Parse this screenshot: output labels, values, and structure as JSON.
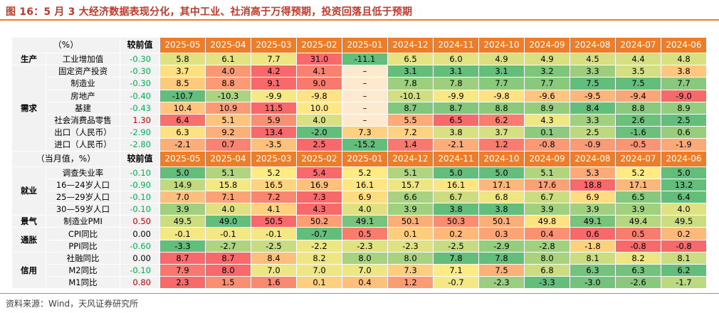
{
  "title": "图 16：5 月 3 大经济数据表现分化，其中工业、社消高于万得预期，投资回落且低于预期",
  "source": "资料来源：Wind，天风证券研究所",
  "colors": {
    "accent": "#ee7d2a",
    "title": "#c0392b",
    "green": "#63be7b",
    "yellow": "#ffeb84",
    "red": "#f8696b",
    "pos": "#c00000",
    "neg": "#00b050"
  },
  "header1": {
    "corner": "（%）",
    "compare": "较前值"
  },
  "header2": {
    "corner": "（当月值，%）",
    "compare": "较前值"
  },
  "months": [
    "2025-05",
    "2025-04",
    "2025-03",
    "2025-02",
    "2025-01",
    "2024-12",
    "2024-11",
    "2024-10",
    "2024-09",
    "2024-08",
    "2024-07",
    "2024-06"
  ],
  "sections": [
    {
      "group": "生产",
      "rows": [
        {
          "label": "工业增加值",
          "cmp": "-0.30",
          "values": [
            "5.8",
            "6.1",
            "7.7",
            "31.0",
            "-11.1",
            "6.5",
            "6.0",
            "4.9",
            "4.9",
            "4.5",
            "4.4",
            "4.8"
          ]
        }
      ]
    },
    {
      "group": "需求",
      "rows": [
        {
          "label": "固定资产投资",
          "cmp": "-0.30",
          "values": [
            "3.7",
            "4.0",
            "4.2",
            "4.1",
            "–",
            "3.1",
            "3.1",
            "3.1",
            "3.2",
            "3.3",
            "3.5",
            "3.8"
          ]
        },
        {
          "label": "制造业",
          "cmp": "-0.30",
          "values": [
            "8.5",
            "8.8",
            "9.1",
            "9.0",
            "–",
            "7.8",
            "7.8",
            "7.7",
            "7.7",
            "7.5",
            "7.5",
            "7.7"
          ]
        },
        {
          "label": "房地产",
          "cmp": "-0.40",
          "values": [
            "-10.7",
            "-10.3",
            "-9.9",
            "-9.8",
            "–",
            "-10.1",
            "-9.9",
            "-9.8",
            "-9.6",
            "-9.5",
            "-9.4",
            "-9.0"
          ]
        },
        {
          "label": "基建",
          "cmp": "-0.43",
          "values": [
            "10.4",
            "10.9",
            "11.5",
            "10.0",
            "–",
            "8.7",
            "8.7",
            "8.8",
            "8.9",
            "8.4",
            "8.8",
            "8.9"
          ]
        },
        {
          "label": "社会消费品零售",
          "cmp": "1.30",
          "values": [
            "6.4",
            "5.1",
            "5.9",
            "4.0",
            "–",
            "5.5",
            "6.5",
            "6.2",
            "4.3",
            "3.3",
            "2.6",
            "2.5"
          ]
        },
        {
          "label": "出口（人民币）",
          "cmp": "-2.90",
          "values": [
            "6.3",
            "9.2",
            "13.4",
            "-2.0",
            "7.3",
            "7.2",
            "3.8",
            "3.7",
            "0.1",
            "2.5",
            "-1.6",
            "0.6"
          ]
        },
        {
          "label": "进口（人民币）",
          "cmp": "-2.80",
          "values": [
            "-2.1",
            "0.7",
            "-3.5",
            "2.5",
            "-15.2",
            "1.4",
            "-2.1",
            "1.2",
            "-0.8",
            "-0.9",
            "-0.5",
            "-1.9"
          ]
        }
      ]
    },
    {
      "group": "就业",
      "rows": [
        {
          "label": "调查失业率",
          "cmp": "-0.10",
          "values": [
            "5.0",
            "5.1",
            "5.2",
            "5.4",
            "5.2",
            "5.1",
            "5.0",
            "5.0",
            "5.1",
            "5.3",
            "5.2",
            "5.0"
          ]
        },
        {
          "label": "16—24岁人口",
          "cmp": "-0.90",
          "values": [
            "14.9",
            "15.8",
            "16.5",
            "16.9",
            "16.1",
            "15.7",
            "16.1",
            "17.1",
            "17.6",
            "18.8",
            "17.1",
            "13.2"
          ]
        },
        {
          "label": "25—29岁人口",
          "cmp": "-0.10",
          "values": [
            "7.0",
            "7.1",
            "7.2",
            "7.3",
            "6.9",
            "6.6",
            "6.7",
            "6.8",
            "6.7",
            "6.9",
            "6.5",
            "6.4"
          ]
        },
        {
          "label": "30—59岁人口",
          "cmp": "-0.10",
          "values": [
            "3.9",
            "4.0",
            "4.1",
            "4.3",
            "4.0",
            "3.9",
            "3.8",
            "3.8",
            "3.9",
            "3.9",
            "3.9",
            "4.0"
          ]
        }
      ]
    },
    {
      "group": "景气",
      "rows": [
        {
          "label": "制造业PMI",
          "cmp": "0.50",
          "values": [
            "49.5",
            "49.0",
            "50.5",
            "50.2",
            "49.1",
            "50.1",
            "50.3",
            "50.1",
            "49.8",
            "49.1",
            "49.4",
            "49.5"
          ]
        }
      ]
    },
    {
      "group": "通胀",
      "rows": [
        {
          "label": "CPI同比",
          "cmp": "0.00",
          "values": [
            "-0.1",
            "-0.1",
            "-0.1",
            "-0.7",
            "0.5",
            "0.1",
            "0.2",
            "0.3",
            "0.4",
            "0.6",
            "0.5",
            "0.2"
          ]
        },
        {
          "label": "PPI同比",
          "cmp": "-0.60",
          "values": [
            "-3.3",
            "-2.7",
            "-2.5",
            "-2.2",
            "-2.3",
            "-2.3",
            "-2.5",
            "-2.9",
            "-2.8",
            "-1.8",
            "-0.8",
            "-0.8"
          ]
        }
      ]
    },
    {
      "group": "信用",
      "rows": [
        {
          "label": "社融同比",
          "cmp": "0.00",
          "values": [
            "8.7",
            "8.7",
            "8.4",
            "8.2",
            "8.0",
            "8.0",
            "7.8",
            "7.8",
            "8.0",
            "8.1",
            "8.2",
            "8.1"
          ]
        },
        {
          "label": "M2同比",
          "cmp": "-0.10",
          "values": [
            "7.9",
            "8.0",
            "7.0",
            "7.0",
            "7.0",
            "7.3",
            "7.1",
            "7.5",
            "6.8",
            "6.3",
            "6.3",
            "6.2"
          ]
        },
        {
          "label": "M1同比",
          "cmp": "0.80",
          "values": [
            "2.3",
            "1.5",
            "1.6",
            "0.1",
            "0.4",
            "1.2",
            "-0.7",
            "-2.3",
            "-3.3",
            "-3.0",
            "-2.6",
            "-1.7"
          ]
        }
      ]
    }
  ]
}
